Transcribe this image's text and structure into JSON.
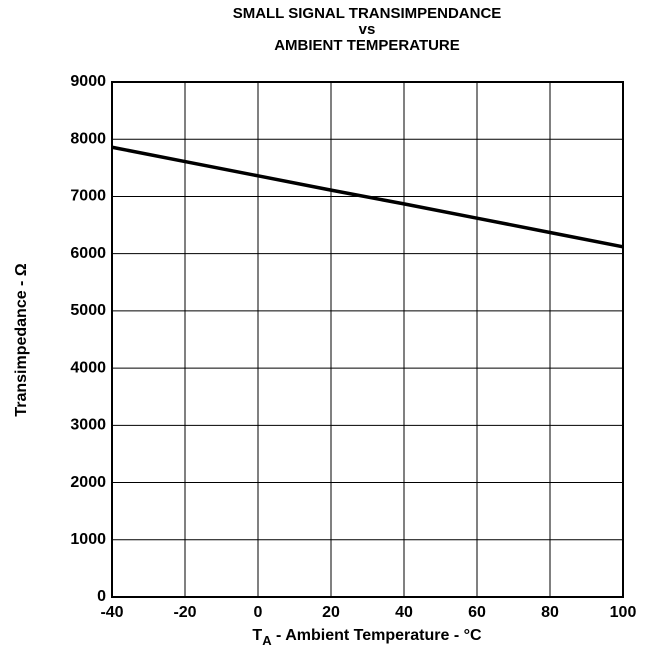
{
  "chart_data": {
    "type": "line",
    "title": [
      "SMALL SIGNAL TRANSIMPENDANCE",
      "vs",
      "AMBIENT TEMPERATURE"
    ],
    "x_label": {
      "main": "T",
      "sub": "A",
      "rest": " - Ambient Temperature - °C"
    },
    "y_label": "Transimpedance - Ω",
    "x": [
      -40,
      -20,
      0,
      20,
      40,
      60,
      80,
      100
    ],
    "series": [
      {
        "color": "#000000",
        "values": [
          7860,
          7610,
          7360,
          7110,
          6870,
          6620,
          6370,
          6120
        ]
      }
    ],
    "xlim": [
      -40,
      100
    ],
    "xticks": [
      -40,
      -20,
      0,
      20,
      40,
      60,
      80,
      100
    ],
    "ylim": [
      0,
      9000
    ],
    "yticks": [
      0,
      1000,
      2000,
      3000,
      4000,
      5000,
      6000,
      7000,
      8000,
      9000
    ],
    "grid": true
  }
}
